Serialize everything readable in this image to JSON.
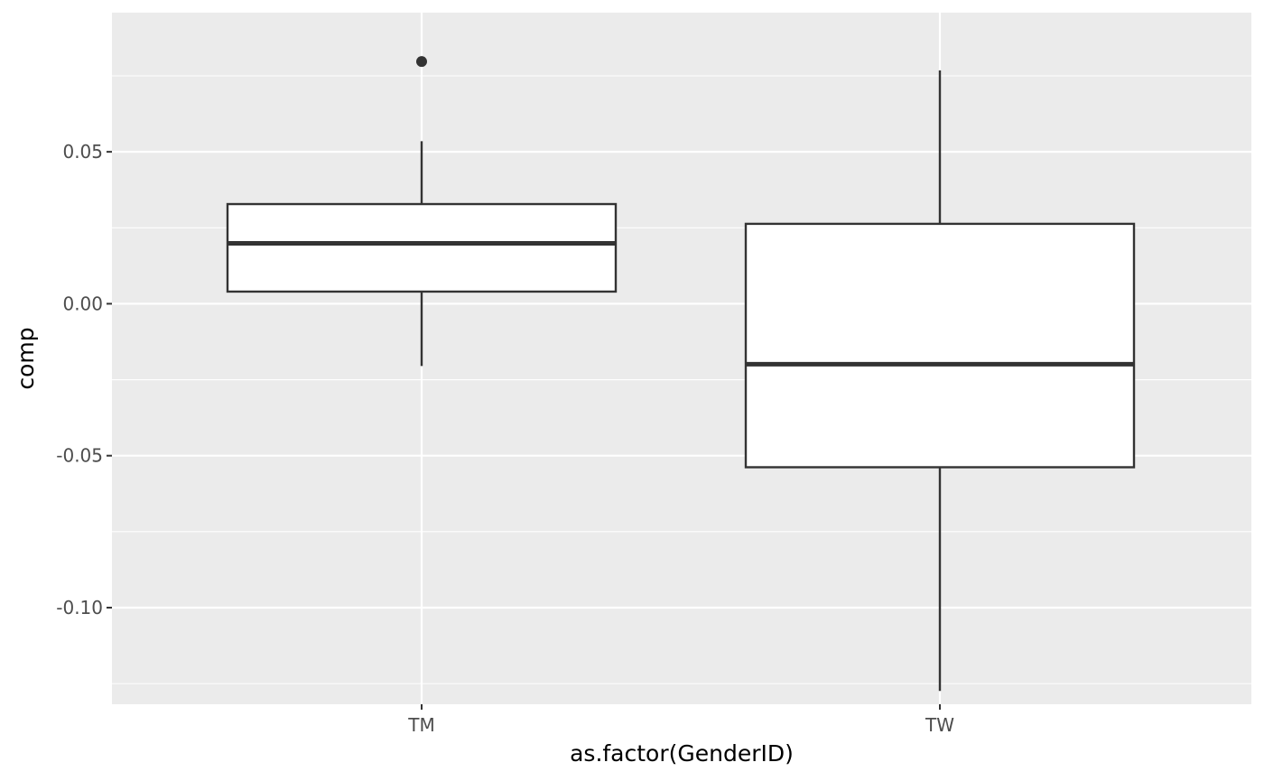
{
  "chart_data": {
    "type": "boxplot",
    "xlabel": "as.factor(GenderID)",
    "ylabel": "comp",
    "ylim": [
      -0.1318,
      0.0958
    ],
    "yticks": [
      {
        "value": -0.1,
        "label": "-0.10"
      },
      {
        "value": -0.05,
        "label": "-0.05"
      },
      {
        "value": 0.0,
        "label": "0.00"
      },
      {
        "value": 0.05,
        "label": "0.05"
      }
    ],
    "categories": [
      "TM",
      "TW"
    ],
    "boxes": [
      {
        "category": "TM",
        "whisker_low": -0.0205,
        "q1": 0.004,
        "median": 0.0199,
        "q3": 0.0328,
        "whisker_high": 0.0535,
        "outliers": [
          0.0797
        ]
      },
      {
        "category": "TW",
        "whisker_low": -0.1274,
        "q1": -0.0538,
        "median": -0.0199,
        "q3": 0.0263,
        "whisker_high": 0.0768,
        "outliers": []
      }
    ],
    "grid": true,
    "colors": {
      "panel_background": "#ebebeb",
      "grid_line": "#ffffff",
      "box_fill": "#ffffff",
      "box_line": "#333333",
      "tick_text": "#4d4d4d"
    }
  }
}
